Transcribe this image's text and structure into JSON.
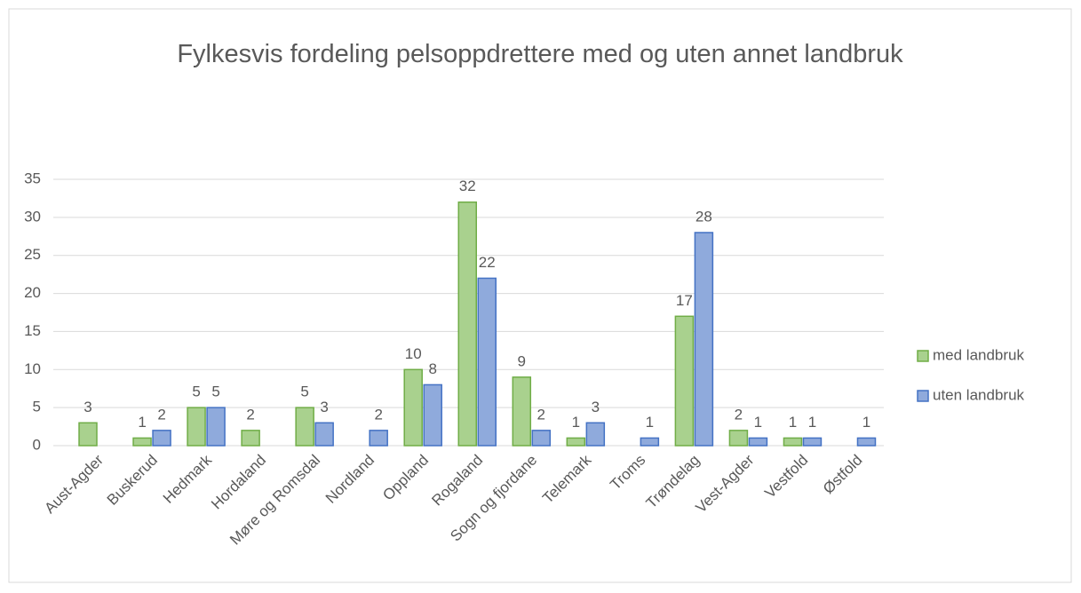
{
  "chart_data": {
    "type": "bar",
    "title": "Fylkesvis fordeling pelsoppdrettere med og uten annet landbruk",
    "categories": [
      "Aust-Agder",
      "Buskerud",
      "Hedmark",
      "Hordaland",
      "Møre og Romsdal",
      "Nordland",
      "Oppland",
      "Rogaland",
      "Sogn og fjordane",
      "Telemark",
      "Troms",
      "Trøndelag",
      "Vest-Agder",
      "Vestfold",
      "Østfold"
    ],
    "series": [
      {
        "name": "med landbruk",
        "color": "#a9d18e",
        "border": "#70ad47",
        "values": [
          3,
          1,
          5,
          2,
          5,
          null,
          10,
          32,
          9,
          1,
          null,
          17,
          2,
          1,
          null
        ]
      },
      {
        "name": "uten landbruk",
        "color": "#8faadc",
        "border": "#4472c4",
        "values": [
          null,
          2,
          5,
          null,
          3,
          2,
          8,
          22,
          2,
          3,
          1,
          28,
          1,
          1,
          1
        ]
      }
    ],
    "ylim": [
      0,
      35
    ],
    "yticks": [
      0,
      5,
      10,
      15,
      20,
      25,
      30,
      35
    ],
    "grid": true,
    "legend": "right"
  }
}
